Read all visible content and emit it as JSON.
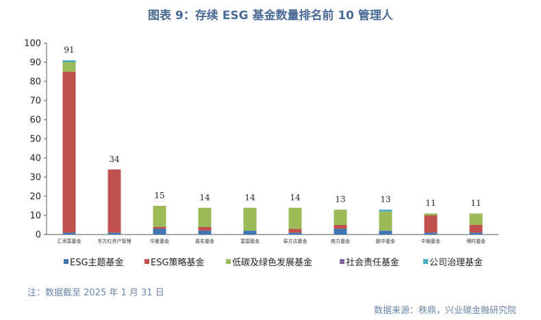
{
  "title": "图表 9：存续 ESG 基金数量排名前 10 管理人",
  "note": "注：数据截至 2025 年 1 月 31 日",
  "source": "数据来源：秩鼎，兴业碳金融研究院",
  "chart_data": {
    "type": "bar",
    "stacked": true,
    "title": "图表 9：存续 ESG 基金数量排名前 10 管理人",
    "xlabel": "",
    "ylabel": "",
    "ylim": [
      0,
      100
    ],
    "yticks": [
      0,
      10,
      20,
      30,
      40,
      50,
      60,
      70,
      80,
      90,
      100
    ],
    "grid": false,
    "legend": "bottom",
    "categories": [
      "汇添富基金",
      "东方红资产管理",
      "华夏基金",
      "嘉实基金",
      "富国基金",
      "易方达基金",
      "南方基金",
      "鹏华基金",
      "中银基金",
      "博时基金"
    ],
    "totals": [
      91,
      34,
      15,
      14,
      14,
      14,
      13,
      13,
      11,
      11
    ],
    "series": [
      {
        "name": "ESG主题基金",
        "color": "#3f74b5",
        "values": [
          1,
          1,
          3,
          2,
          2,
          1,
          3,
          2,
          1,
          1
        ]
      },
      {
        "name": "ESG策略基金",
        "color": "#c0504d",
        "values": [
          84,
          33,
          1,
          2,
          0,
          2,
          2,
          0,
          9,
          4
        ]
      },
      {
        "name": "低碳及绿色发展基金",
        "color": "#9bbb59",
        "values": [
          5,
          0,
          11,
          10,
          12,
          11,
          8,
          10,
          1,
          6
        ]
      },
      {
        "name": "社会责任基金",
        "color": "#8064a2",
        "values": [
          0,
          0,
          0,
          0,
          0,
          0,
          0,
          0,
          0,
          0
        ]
      },
      {
        "name": "公司治理基金",
        "color": "#4bacc6",
        "values": [
          1,
          0,
          0,
          0,
          0,
          0,
          0,
          1,
          0,
          0
        ]
      }
    ]
  }
}
